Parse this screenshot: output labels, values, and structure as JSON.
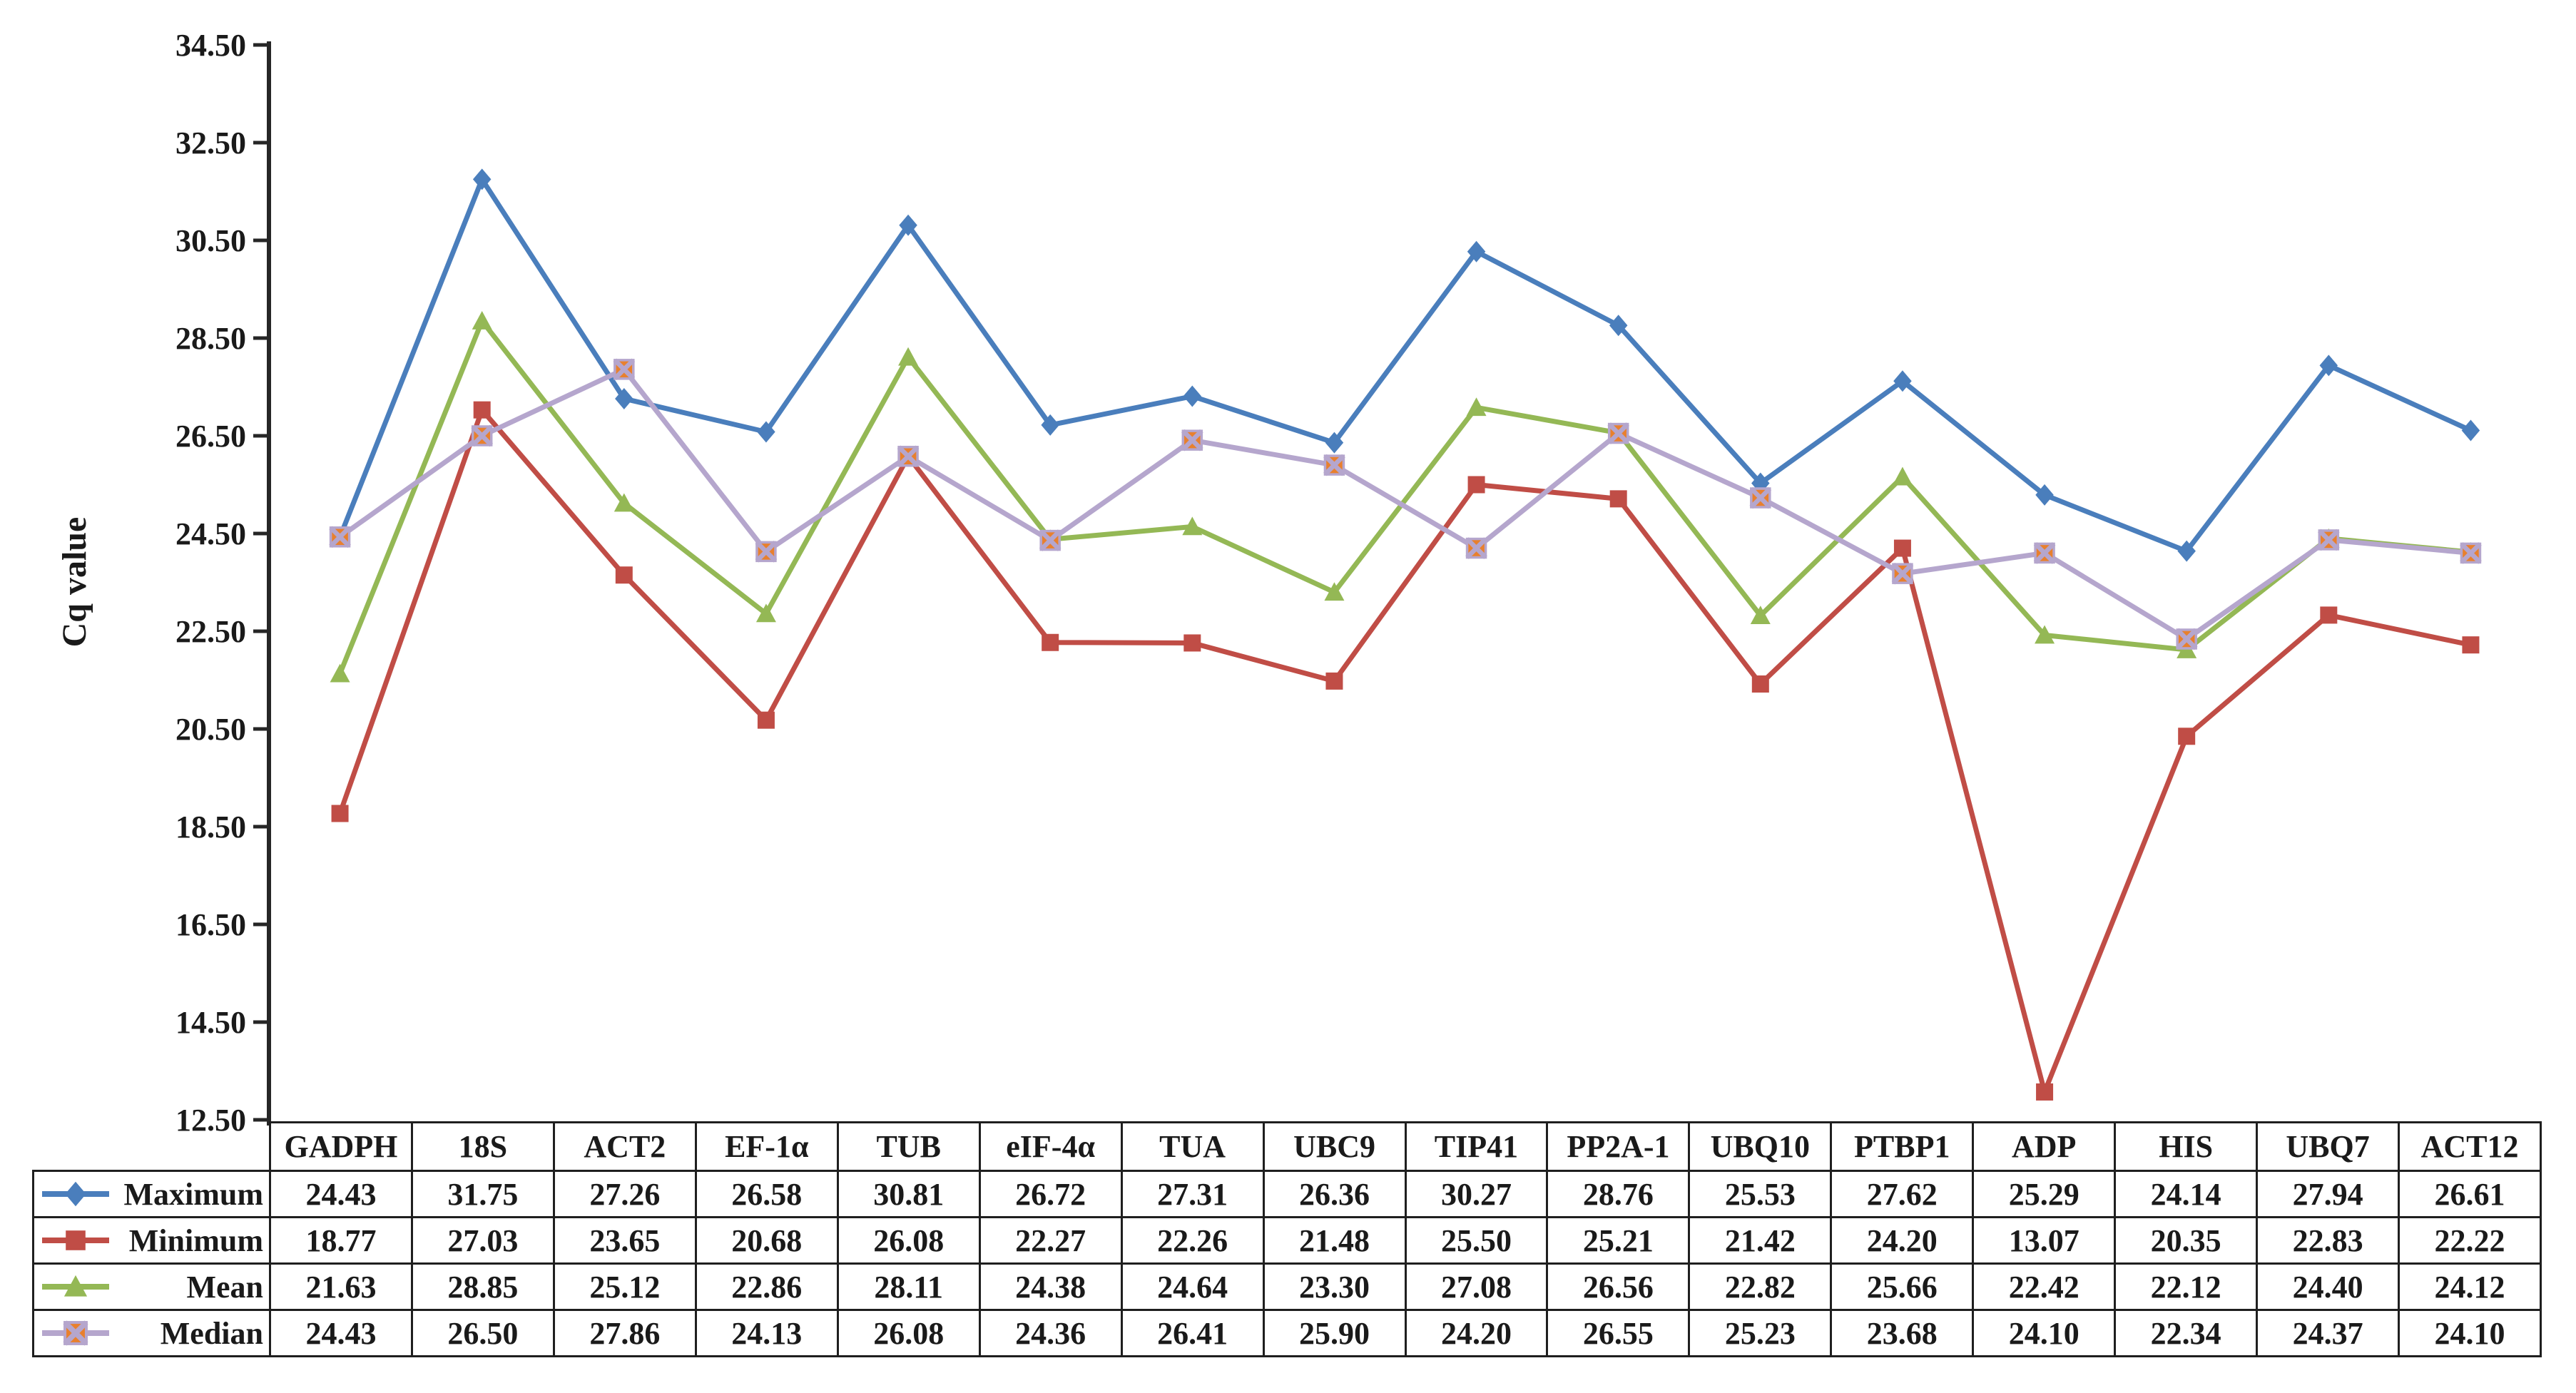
{
  "ylabel": "Cq value",
  "axis": {
    "tick_labels": [
      "34.50",
      "32.50",
      "30.50",
      "28.50",
      "26.50",
      "24.50",
      "22.50",
      "20.50",
      "18.50",
      "16.50",
      "14.50",
      "12.50"
    ]
  },
  "colors": {
    "axis": "#262626",
    "table_border": "#1f1f1f",
    "text": "#1a1a1a",
    "maximum": "#4a7ebc",
    "minimum": "#c04d46",
    "mean": "#94b855",
    "median_line": "#b5a6cd",
    "median_marker_fill": "#e8802e"
  },
  "chart_data": {
    "type": "line",
    "title": "",
    "xlabel": "",
    "ylabel": "Cq value",
    "ylim": [
      12.5,
      34.5
    ],
    "ytick_step": 2.0,
    "grid": false,
    "legend_position": "table-first-column",
    "categories": [
      "GADPH",
      "18S",
      "ACT2",
      "EF-1α",
      "TUB",
      "eIF-4α",
      "TUA",
      "UBC9",
      "TIP41",
      "PP2A-1",
      "UBQ10",
      "PTBP1",
      "ADP",
      "HIS",
      "UBQ7",
      "ACT12"
    ],
    "series": [
      {
        "name": "Maximum",
        "color": "#4a7ebc",
        "marker": "diamond",
        "values": [
          24.43,
          31.75,
          27.26,
          26.58,
          30.81,
          26.72,
          27.31,
          26.36,
          30.27,
          28.76,
          25.53,
          27.62,
          25.29,
          24.14,
          27.94,
          26.61
        ]
      },
      {
        "name": "Minimum",
        "color": "#c04d46",
        "marker": "square",
        "values": [
          18.77,
          27.03,
          23.65,
          20.68,
          26.08,
          22.27,
          22.26,
          21.48,
          25.5,
          25.21,
          21.42,
          24.2,
          13.07,
          20.35,
          22.83,
          22.22
        ]
      },
      {
        "name": "Mean",
        "color": "#94b855",
        "marker": "triangle",
        "values": [
          21.63,
          28.85,
          25.12,
          22.86,
          28.11,
          24.38,
          24.64,
          23.3,
          27.08,
          26.56,
          22.82,
          25.66,
          22.42,
          22.12,
          24.4,
          24.12
        ]
      },
      {
        "name": "Median",
        "color": "#b5a6cd",
        "marker": "x-square",
        "marker_fill": "#e8802e",
        "values": [
          24.43,
          26.5,
          27.86,
          24.13,
          26.08,
          24.36,
          26.41,
          25.9,
          24.2,
          26.55,
          25.23,
          23.68,
          24.1,
          22.34,
          24.37,
          24.1
        ]
      }
    ]
  }
}
